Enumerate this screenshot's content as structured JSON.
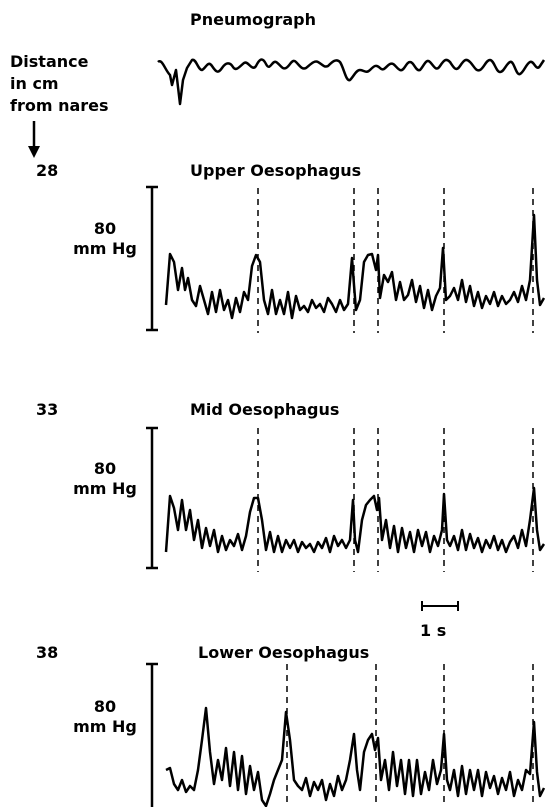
{
  "pneumograph": {
    "title": "Pneumograph"
  },
  "distance_header": {
    "line1": "Distance",
    "line2": "in cm",
    "line3": "from nares"
  },
  "traces": [
    {
      "distance": "28",
      "title": "Upper Oesophagus",
      "scale_value": "80",
      "scale_unit": "mm Hg"
    },
    {
      "distance": "33",
      "title": "Mid Oesophagus",
      "scale_value": "80",
      "scale_unit": "mm Hg"
    },
    {
      "distance": "38",
      "title": "Lower Oesophagus",
      "scale_value": "80",
      "scale_unit": "mm Hg"
    }
  ],
  "time_scale": {
    "label": "1 s"
  },
  "colors": {
    "ink": "#000000",
    "background": "#ffffff"
  }
}
